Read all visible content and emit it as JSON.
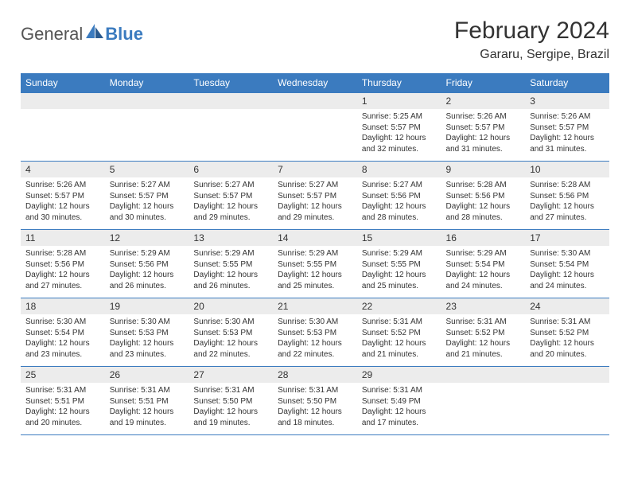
{
  "logo": {
    "general": "General",
    "blue": "Blue"
  },
  "title": "February 2024",
  "location": "Gararu, Sergipe, Brazil",
  "colors": {
    "accent": "#3b7bbf",
    "headerText": "#ffffff",
    "daynumBg": "#ececec",
    "border": "#3b7bbf",
    "text": "#333333"
  },
  "layout": {
    "columns": 7,
    "rows": 5,
    "startCol": 4,
    "dayHeaderFontSize": 12,
    "titleFontSize": 30,
    "locationFontSize": 16,
    "cellFontSize": 10
  },
  "dayHeaders": [
    "Sunday",
    "Monday",
    "Tuesday",
    "Wednesday",
    "Thursday",
    "Friday",
    "Saturday"
  ],
  "days": [
    {
      "n": "1",
      "sr": "Sunrise: 5:25 AM",
      "ss": "Sunset: 5:57 PM",
      "dl": "Daylight: 12 hours and 32 minutes."
    },
    {
      "n": "2",
      "sr": "Sunrise: 5:26 AM",
      "ss": "Sunset: 5:57 PM",
      "dl": "Daylight: 12 hours and 31 minutes."
    },
    {
      "n": "3",
      "sr": "Sunrise: 5:26 AM",
      "ss": "Sunset: 5:57 PM",
      "dl": "Daylight: 12 hours and 31 minutes."
    },
    {
      "n": "4",
      "sr": "Sunrise: 5:26 AM",
      "ss": "Sunset: 5:57 PM",
      "dl": "Daylight: 12 hours and 30 minutes."
    },
    {
      "n": "5",
      "sr": "Sunrise: 5:27 AM",
      "ss": "Sunset: 5:57 PM",
      "dl": "Daylight: 12 hours and 30 minutes."
    },
    {
      "n": "6",
      "sr": "Sunrise: 5:27 AM",
      "ss": "Sunset: 5:57 PM",
      "dl": "Daylight: 12 hours and 29 minutes."
    },
    {
      "n": "7",
      "sr": "Sunrise: 5:27 AM",
      "ss": "Sunset: 5:57 PM",
      "dl": "Daylight: 12 hours and 29 minutes."
    },
    {
      "n": "8",
      "sr": "Sunrise: 5:27 AM",
      "ss": "Sunset: 5:56 PM",
      "dl": "Daylight: 12 hours and 28 minutes."
    },
    {
      "n": "9",
      "sr": "Sunrise: 5:28 AM",
      "ss": "Sunset: 5:56 PM",
      "dl": "Daylight: 12 hours and 28 minutes."
    },
    {
      "n": "10",
      "sr": "Sunrise: 5:28 AM",
      "ss": "Sunset: 5:56 PM",
      "dl": "Daylight: 12 hours and 27 minutes."
    },
    {
      "n": "11",
      "sr": "Sunrise: 5:28 AM",
      "ss": "Sunset: 5:56 PM",
      "dl": "Daylight: 12 hours and 27 minutes."
    },
    {
      "n": "12",
      "sr": "Sunrise: 5:29 AM",
      "ss": "Sunset: 5:56 PM",
      "dl": "Daylight: 12 hours and 26 minutes."
    },
    {
      "n": "13",
      "sr": "Sunrise: 5:29 AM",
      "ss": "Sunset: 5:55 PM",
      "dl": "Daylight: 12 hours and 26 minutes."
    },
    {
      "n": "14",
      "sr": "Sunrise: 5:29 AM",
      "ss": "Sunset: 5:55 PM",
      "dl": "Daylight: 12 hours and 25 minutes."
    },
    {
      "n": "15",
      "sr": "Sunrise: 5:29 AM",
      "ss": "Sunset: 5:55 PM",
      "dl": "Daylight: 12 hours and 25 minutes."
    },
    {
      "n": "16",
      "sr": "Sunrise: 5:29 AM",
      "ss": "Sunset: 5:54 PM",
      "dl": "Daylight: 12 hours and 24 minutes."
    },
    {
      "n": "17",
      "sr": "Sunrise: 5:30 AM",
      "ss": "Sunset: 5:54 PM",
      "dl": "Daylight: 12 hours and 24 minutes."
    },
    {
      "n": "18",
      "sr": "Sunrise: 5:30 AM",
      "ss": "Sunset: 5:54 PM",
      "dl": "Daylight: 12 hours and 23 minutes."
    },
    {
      "n": "19",
      "sr": "Sunrise: 5:30 AM",
      "ss": "Sunset: 5:53 PM",
      "dl": "Daylight: 12 hours and 23 minutes."
    },
    {
      "n": "20",
      "sr": "Sunrise: 5:30 AM",
      "ss": "Sunset: 5:53 PM",
      "dl": "Daylight: 12 hours and 22 minutes."
    },
    {
      "n": "21",
      "sr": "Sunrise: 5:30 AM",
      "ss": "Sunset: 5:53 PM",
      "dl": "Daylight: 12 hours and 22 minutes."
    },
    {
      "n": "22",
      "sr": "Sunrise: 5:31 AM",
      "ss": "Sunset: 5:52 PM",
      "dl": "Daylight: 12 hours and 21 minutes."
    },
    {
      "n": "23",
      "sr": "Sunrise: 5:31 AM",
      "ss": "Sunset: 5:52 PM",
      "dl": "Daylight: 12 hours and 21 minutes."
    },
    {
      "n": "24",
      "sr": "Sunrise: 5:31 AM",
      "ss": "Sunset: 5:52 PM",
      "dl": "Daylight: 12 hours and 20 minutes."
    },
    {
      "n": "25",
      "sr": "Sunrise: 5:31 AM",
      "ss": "Sunset: 5:51 PM",
      "dl": "Daylight: 12 hours and 20 minutes."
    },
    {
      "n": "26",
      "sr": "Sunrise: 5:31 AM",
      "ss": "Sunset: 5:51 PM",
      "dl": "Daylight: 12 hours and 19 minutes."
    },
    {
      "n": "27",
      "sr": "Sunrise: 5:31 AM",
      "ss": "Sunset: 5:50 PM",
      "dl": "Daylight: 12 hours and 19 minutes."
    },
    {
      "n": "28",
      "sr": "Sunrise: 5:31 AM",
      "ss": "Sunset: 5:50 PM",
      "dl": "Daylight: 12 hours and 18 minutes."
    },
    {
      "n": "29",
      "sr": "Sunrise: 5:31 AM",
      "ss": "Sunset: 5:49 PM",
      "dl": "Daylight: 12 hours and 17 minutes."
    }
  ]
}
